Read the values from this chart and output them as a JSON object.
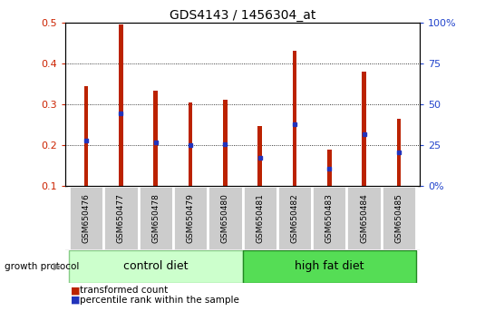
{
  "title": "GDS4143 / 1456304_at",
  "samples": [
    "GSM650476",
    "GSM650477",
    "GSM650478",
    "GSM650479",
    "GSM650480",
    "GSM650481",
    "GSM650482",
    "GSM650483",
    "GSM650484",
    "GSM650485"
  ],
  "red_values": [
    0.345,
    0.495,
    0.333,
    0.305,
    0.312,
    0.248,
    0.43,
    0.19,
    0.38,
    0.265
  ],
  "blue_values": [
    0.212,
    0.278,
    0.207,
    0.2,
    0.202,
    0.17,
    0.252,
    0.143,
    0.228,
    0.183
  ],
  "ymin": 0.1,
  "ymax": 0.5,
  "yticks": [
    0.1,
    0.2,
    0.3,
    0.4,
    0.5
  ],
  "right_yticks": [
    0,
    25,
    50,
    75,
    100
  ],
  "right_ylabels": [
    "0%",
    "25",
    "50",
    "75",
    "100%"
  ],
  "ctrl_color": "#ccffcc",
  "ctrl_border": "#88cc88",
  "hfd_color": "#55dd55",
  "hfd_border": "#228822",
  "group_label": "growth protocol",
  "bar_color": "#bb2200",
  "dot_color": "#2233bb",
  "bar_width": 0.12,
  "tick_color_left": "#cc2200",
  "tick_color_right": "#2244cc",
  "cell_color": "#cccccc",
  "cell_border": "#ffffff",
  "legend_red": "transformed count",
  "legend_blue": "percentile rank within the sample",
  "ctrl_label": "control diet",
  "hfd_label": "high fat diet"
}
